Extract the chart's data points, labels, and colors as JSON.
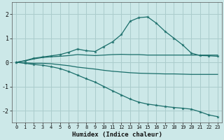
{
  "xlabel": "Humidex (Indice chaleur)",
  "bg_color": "#cce8e8",
  "grid_color": "#aacccc",
  "line_color": "#1a6e6a",
  "xlim": [
    -0.5,
    23.5
  ],
  "ylim": [
    -2.5,
    2.5
  ],
  "xticks": [
    0,
    1,
    2,
    3,
    4,
    5,
    6,
    7,
    8,
    9,
    10,
    11,
    12,
    13,
    14,
    15,
    16,
    17,
    18,
    19,
    20,
    21,
    22,
    23
  ],
  "yticks": [
    -2,
    -1,
    0,
    1,
    2
  ],
  "lines": [
    {
      "x": [
        0,
        1,
        2,
        3,
        4,
        5,
        6,
        7,
        8,
        9,
        10,
        11,
        12,
        13,
        14,
        15,
        16,
        17,
        18,
        19,
        20,
        21,
        22,
        23
      ],
      "y": [
        0.0,
        0.07,
        0.17,
        0.22,
        0.27,
        0.32,
        0.42,
        0.55,
        0.48,
        0.45,
        0.65,
        0.85,
        1.15,
        1.7,
        1.85,
        1.88,
        1.62,
        1.28,
        1.0,
        0.72,
        0.38,
        0.28,
        0.27,
        0.25
      ],
      "has_markers": true
    },
    {
      "x": [
        0,
        1,
        2,
        3,
        4,
        5,
        6,
        7,
        8,
        9,
        10,
        11,
        12,
        13,
        14,
        15,
        16,
        17,
        18,
        19,
        20,
        21,
        22,
        23
      ],
      "y": [
        0.0,
        0.06,
        0.14,
        0.2,
        0.23,
        0.25,
        0.28,
        0.32,
        0.3,
        0.28,
        0.3,
        0.32,
        0.33,
        0.32,
        0.32,
        0.3,
        0.3,
        0.3,
        0.3,
        0.3,
        0.3,
        0.3,
        0.3,
        0.3
      ],
      "has_markers": false
    },
    {
      "x": [
        0,
        1,
        2,
        3,
        4,
        5,
        6,
        7,
        8,
        9,
        10,
        11,
        12,
        13,
        14,
        15,
        16,
        17,
        18,
        19,
        20,
        21,
        22,
        23
      ],
      "y": [
        0.0,
        -0.02,
        -0.04,
        -0.04,
        -0.06,
        -0.1,
        -0.14,
        -0.2,
        -0.24,
        -0.28,
        -0.33,
        -0.37,
        -0.4,
        -0.43,
        -0.45,
        -0.46,
        -0.47,
        -0.48,
        -0.48,
        -0.49,
        -0.5,
        -0.5,
        -0.5,
        -0.5
      ],
      "has_markers": false
    },
    {
      "x": [
        0,
        1,
        2,
        3,
        4,
        5,
        6,
        7,
        8,
        9,
        10,
        11,
        12,
        13,
        14,
        15,
        16,
        17,
        18,
        19,
        20,
        21,
        22,
        23
      ],
      "y": [
        0.0,
        -0.04,
        -0.09,
        -0.12,
        -0.18,
        -0.26,
        -0.38,
        -0.53,
        -0.68,
        -0.82,
        -1.0,
        -1.18,
        -1.35,
        -1.52,
        -1.65,
        -1.73,
        -1.78,
        -1.83,
        -1.87,
        -1.9,
        -1.94,
        -2.05,
        -2.18,
        -2.25
      ],
      "has_markers": true
    }
  ]
}
